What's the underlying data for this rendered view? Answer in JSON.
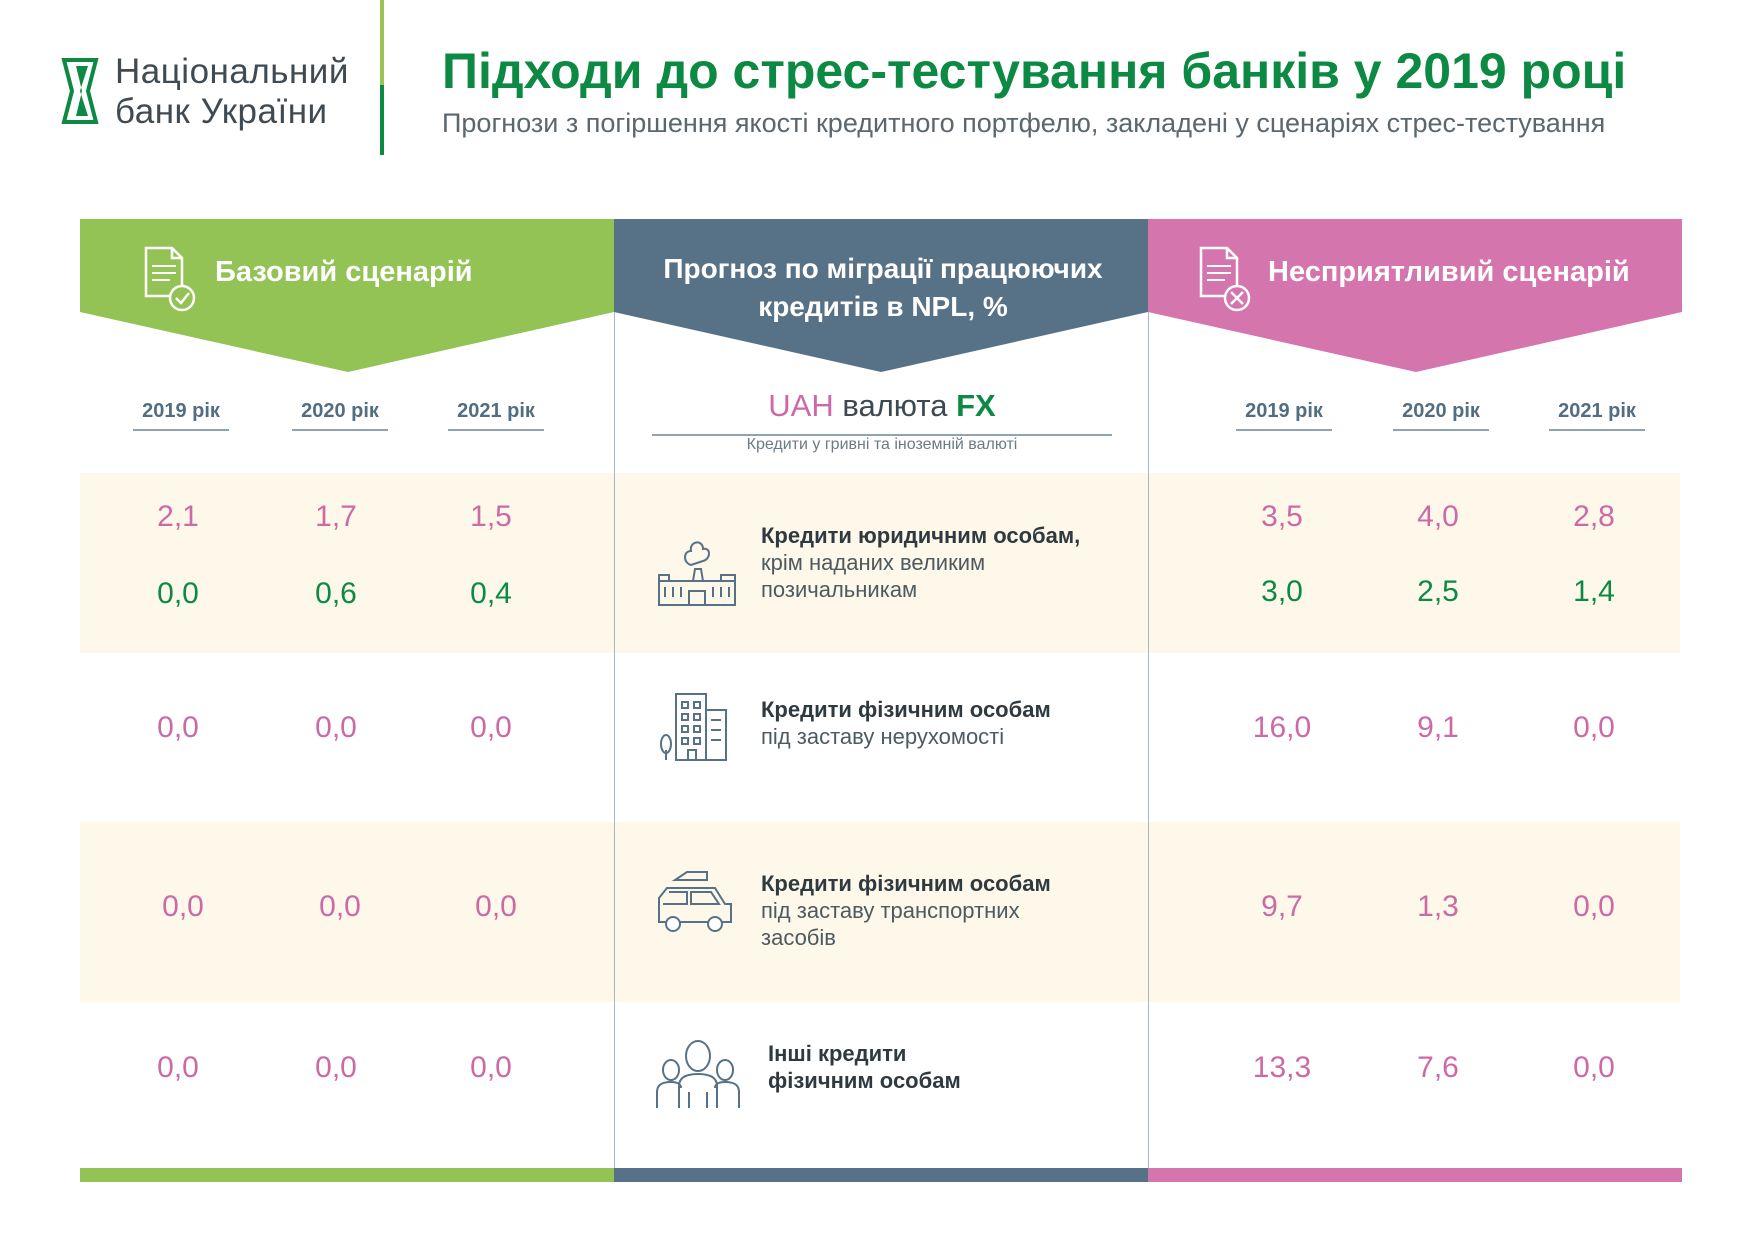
{
  "header": {
    "logo_line1": "Національний",
    "logo_line2": "банк України",
    "title": "Підходи до стрес-тестування банків у 2019 році",
    "subtitle": "Прогнози з погіршення якості кредитного портфелю, закладені у сценаріях стрес-тестування"
  },
  "colors": {
    "base_green": "#93c255",
    "center_slate": "#577186",
    "adverse_pink": "#d475ad",
    "uah_pink": "#cc6aa6",
    "fx_green": "#0c8a43",
    "band_cream": "#fdf8ea"
  },
  "banners": {
    "base": "Базовий сценарій",
    "center": "Прогноз по міграції працюючих кредитів в NPL, %",
    "adverse": "Несприятливий сценарій"
  },
  "currency_legend": {
    "uah": "UAH",
    "word": "валюта",
    "fx": "FX",
    "note": "Кредити у гривні та іноземній валюті"
  },
  "chart_data": {
    "type": "table",
    "title": "Прогноз по міграції працюючих кредитів в NPL, %",
    "scenarios": [
      "Базовий сценарій",
      "Несприятливий сценарій"
    ],
    "years": [
      "2019 рік",
      "2020 рік",
      "2021 рік"
    ],
    "rows": [
      {
        "label_bold": "Кредити юридичним особам,",
        "label_rest": "крім наданих великим позичальникам",
        "icon": "factory-icon",
        "base_uah": [
          "2,1",
          "1,7",
          "1,5"
        ],
        "base_fx": [
          "0,0",
          "0,6",
          "0,4"
        ],
        "adverse_uah": [
          "3,5",
          "4,0",
          "2,8"
        ],
        "adverse_fx": [
          "3,0",
          "2,5",
          "1,4"
        ]
      },
      {
        "label_bold": "Кредити фізичним особам",
        "label_rest": "під заставу нерухомості",
        "icon": "apartment-building-icon",
        "base_uah": [
          "0,0",
          "0,0",
          "0,0"
        ],
        "adverse_uah": [
          "16,0",
          "9,1",
          "0,0"
        ]
      },
      {
        "label_bold": "Кредити фізичним особам",
        "label_rest": "під заставу транспортних засобів",
        "icon": "car-icon",
        "base_uah": [
          "0,0",
          "0,0",
          "0,0"
        ],
        "adverse_uah": [
          "9,7",
          "1,3",
          "0,0"
        ]
      },
      {
        "label_bold": "Інші кредити фізичним особам",
        "label_rest": "",
        "icon": "people-group-icon",
        "base_uah": [
          "0,0",
          "0,0",
          "0,0"
        ],
        "adverse_uah": [
          "13,3",
          "7,6",
          "0,0"
        ]
      }
    ]
  }
}
